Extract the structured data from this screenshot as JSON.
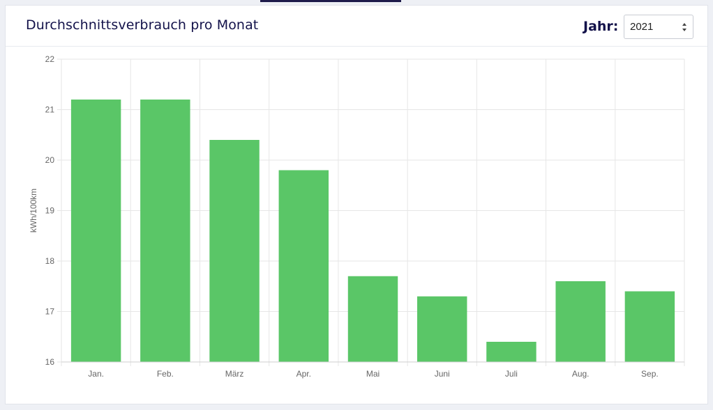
{
  "header": {
    "title": "Durchschnittsverbrauch pro Monat",
    "year_label": "Jahr:",
    "year_selected": "2021"
  },
  "colors": {
    "bar": "#5ac667",
    "title": "#13124a",
    "grid": "#e6e6e6",
    "axis_text": "#666666"
  },
  "chart_data": {
    "type": "bar",
    "categories": [
      "Jan.",
      "Feb.",
      "März",
      "Apr.",
      "Mai",
      "Juni",
      "Juli",
      "Aug.",
      "Sep."
    ],
    "values": [
      21.2,
      21.2,
      20.4,
      19.8,
      17.7,
      17.3,
      16.4,
      17.6,
      17.4
    ],
    "ylabel": "kWh/100km",
    "ylim": [
      16,
      22
    ],
    "yticks": [
      16,
      17,
      18,
      19,
      20,
      21,
      22
    ],
    "grid": true,
    "legend": "none"
  }
}
